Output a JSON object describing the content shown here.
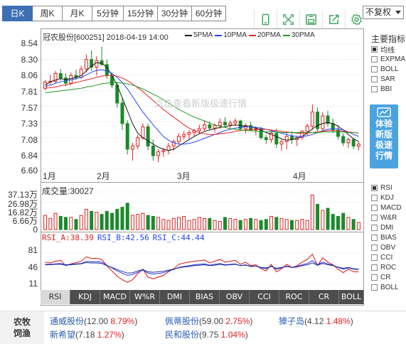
{
  "periods": [
    "日K",
    "周K",
    "月K",
    "5分钟",
    "15分钟",
    "30分钟",
    "60分钟"
  ],
  "active_period": "日K",
  "toolbar_icons": [
    "mobile-icon",
    "fullscreen-icon",
    "save-icon",
    "share-icon",
    "settings-icon"
  ],
  "adjust": {
    "selected": "不复权"
  },
  "stock": {
    "title": "冠农股份[600251] 2018-04-19 14:00"
  },
  "ma_legend": [
    {
      "label": "5PMA",
      "color": "#1a1a1a"
    },
    {
      "label": "10PMA",
      "color": "#2244ff"
    },
    {
      "label": "20PMA",
      "color": "#ee2222"
    },
    {
      "label": "30PMA",
      "color": "#229922"
    }
  ],
  "y_axis": [
    "8.54",
    "8.30",
    "8.06",
    "7.81",
    "7.57",
    "7.33",
    "7.08",
    "6.84",
    "6.60"
  ],
  "x_axis": [
    "1月",
    "2月",
    "3月",
    "4月"
  ],
  "volume": {
    "label": "成交量:30027",
    "y_axis": [
      "37.13万",
      "26.98万",
      "16.82万",
      "6.66万",
      "0"
    ]
  },
  "rsi": {
    "a": "RSI_A:38.39",
    "b": "RSI_B:42.56",
    "c": "RSI_C:44.44",
    "y_axis": [
      "81",
      "46",
      "11"
    ]
  },
  "watermark": "点击查看新版极速行情",
  "right_panel": {
    "title": "主要指标",
    "main": [
      {
        "label": "均线",
        "checked": true
      },
      {
        "label": "EXPMA",
        "checked": false
      },
      {
        "label": "BOLL",
        "checked": false
      },
      {
        "label": "SAR",
        "checked": false
      },
      {
        "label": "BBI",
        "checked": false
      }
    ],
    "promo_lines": [
      "体验",
      "新版",
      "极速",
      "行情"
    ],
    "sub": [
      {
        "label": "RSI",
        "checked": true
      },
      {
        "label": "KDJ",
        "checked": false
      },
      {
        "label": "MACD",
        "checked": false
      },
      {
        "label": "W&R",
        "checked": false
      },
      {
        "label": "DMI",
        "checked": false
      },
      {
        "label": "BIAS",
        "checked": false
      },
      {
        "label": "OBV",
        "checked": false
      },
      {
        "label": "CCI",
        "checked": false
      },
      {
        "label": "ROC",
        "checked": false
      },
      {
        "label": "CR",
        "checked": false
      },
      {
        "label": "BOLL",
        "checked": false
      }
    ]
  },
  "indicator_tabs": [
    "RSI",
    "KDJ",
    "MACD",
    "W%R",
    "DMI",
    "BIAS",
    "OBV",
    "CCI",
    "ROC",
    "CR",
    "BOLL"
  ],
  "active_indicator": "RSI",
  "related": {
    "category": "农牧饲渔",
    "stocks": [
      {
        "name": "通威股份",
        "price": "12.00",
        "change": "8.79%"
      },
      {
        "name": "佩蒂股份",
        "price": "59.00",
        "change": "2.75%"
      },
      {
        "name": "獐子岛",
        "price": "4.12",
        "change": "1.48%"
      },
      {
        "name": "新希望",
        "price": "7.18",
        "change": "1.27%"
      },
      {
        "name": "民和股份",
        "price": "9.75",
        "change": "1.04%"
      }
    ]
  },
  "colors": {
    "up": "#e02020",
    "down": "#1a8a2a",
    "accent": "#3d6fb3",
    "promo": "#4aa3e0"
  },
  "chart_data": [
    {
      "type": "candlestick",
      "title": "冠农股份[600251] 2018-04-19 14:00",
      "x_labels": [
        "1月",
        "2月",
        "3月",
        "4月"
      ],
      "ylim": [
        6.6,
        8.54
      ],
      "series": [
        {
          "name": "K线",
          "ohlc": [
            [
              7.85,
              7.98,
              7.82,
              7.95
            ],
            [
              7.95,
              8.06,
              7.9,
              7.96
            ],
            [
              7.96,
              8.12,
              7.93,
              8.08
            ],
            [
              8.08,
              8.15,
              7.97,
              8.01
            ],
            [
              8.01,
              8.08,
              7.88,
              7.93
            ],
            [
              7.93,
              8.1,
              7.9,
              8.05
            ],
            [
              8.05,
              8.14,
              7.98,
              8.02
            ],
            [
              8.02,
              8.2,
              8.0,
              8.15
            ],
            [
              8.15,
              8.38,
              8.1,
              8.3
            ],
            [
              8.3,
              8.44,
              8.12,
              8.18
            ],
            [
              8.18,
              8.35,
              8.05,
              8.28
            ],
            [
              8.28,
              8.5,
              8.2,
              8.22
            ],
            [
              8.22,
              8.3,
              8.0,
              8.05
            ],
            [
              8.05,
              8.1,
              7.85,
              7.9
            ],
            [
              7.9,
              7.95,
              7.55,
              7.62
            ],
            [
              7.62,
              7.7,
              7.2,
              7.3
            ],
            [
              7.3,
              7.35,
              6.82,
              6.9
            ],
            [
              6.9,
              7.0,
              6.72,
              6.95
            ],
            [
              6.95,
              7.12,
              6.9,
              7.08
            ],
            [
              7.08,
              7.3,
              7.05,
              7.25
            ],
            [
              7.25,
              7.3,
              6.88,
              6.95
            ],
            [
              6.95,
              7.05,
              6.72,
              6.8
            ],
            [
              6.8,
              6.9,
              6.7,
              6.86
            ],
            [
              6.86,
              6.92,
              6.78,
              6.88
            ],
            [
              6.88,
              7.0,
              6.82,
              6.95
            ],
            [
              6.95,
              7.05,
              6.88,
              7.02
            ],
            [
              7.02,
              7.15,
              6.98,
              7.1
            ],
            [
              7.1,
              7.18,
              7.05,
              7.13
            ],
            [
              7.13,
              7.2,
              7.06,
              7.16
            ],
            [
              7.16,
              7.22,
              7.1,
              7.19
            ],
            [
              7.19,
              7.28,
              7.14,
              7.22
            ],
            [
              7.22,
              7.35,
              7.18,
              7.28
            ],
            [
              7.28,
              7.33,
              7.2,
              7.23
            ],
            [
              7.23,
              7.3,
              7.16,
              7.27
            ],
            [
              7.27,
              7.38,
              7.22,
              7.32
            ],
            [
              7.32,
              7.4,
              7.25,
              7.28
            ],
            [
              7.28,
              7.35,
              7.22,
              7.31
            ],
            [
              7.31,
              7.38,
              7.26,
              7.34
            ],
            [
              7.34,
              7.36,
              7.2,
              7.22
            ],
            [
              7.22,
              7.3,
              7.15,
              7.27
            ],
            [
              7.27,
              7.33,
              7.18,
              7.2
            ],
            [
              7.2,
              7.26,
              7.12,
              7.22
            ],
            [
              7.22,
              7.25,
              7.05,
              7.08
            ],
            [
              7.08,
              7.12,
              6.98,
              7.05
            ],
            [
              7.05,
              7.2,
              7.0,
              7.15
            ],
            [
              7.15,
              7.22,
              6.92,
              6.98
            ],
            [
              6.98,
              7.05,
              6.88,
              7.02
            ],
            [
              7.02,
              7.15,
              6.9,
              7.1
            ],
            [
              7.1,
              7.18,
              6.98,
              7.05
            ],
            [
              7.05,
              7.1,
              6.95,
              7.08
            ],
            [
              7.08,
              7.2,
              7.05,
              7.18
            ],
            [
              7.18,
              7.3,
              7.12,
              7.26
            ],
            [
              7.26,
              7.6,
              7.2,
              7.48
            ],
            [
              7.48,
              7.55,
              7.15,
              7.22
            ],
            [
              7.22,
              7.48,
              7.2,
              7.42
            ],
            [
              7.42,
              7.5,
              7.25,
              7.3
            ],
            [
              7.3,
              7.38,
              7.15,
              7.2
            ],
            [
              7.2,
              7.28,
              7.05,
              7.1
            ],
            [
              7.1,
              7.15,
              6.95,
              7.0
            ],
            [
              7.0,
              7.08,
              6.92,
              7.05
            ],
            [
              7.05,
              7.08,
              6.9,
              6.95
            ],
            [
              6.95,
              7.02,
              6.88,
              6.98
            ]
          ]
        },
        {
          "name": "5PMA",
          "values": [
            7.9,
            7.95,
            7.98,
            8.0,
            7.99,
            8.0,
            8.02,
            8.05,
            8.12,
            8.2,
            8.25,
            8.24,
            8.18,
            8.05,
            7.9,
            7.7,
            7.5,
            7.3,
            7.15,
            7.08,
            7.03,
            6.98,
            6.93,
            6.9,
            6.88,
            6.9,
            6.95,
            7.0,
            7.05,
            7.1,
            7.14,
            7.18,
            7.2,
            7.22,
            7.24,
            7.25,
            7.27,
            7.28,
            7.27,
            7.26,
            7.25,
            7.23,
            7.2,
            7.16,
            7.13,
            7.1,
            7.06,
            7.04,
            7.05,
            7.07,
            7.1,
            7.15,
            7.22,
            7.27,
            7.3,
            7.32,
            7.3,
            7.26,
            7.2,
            7.13,
            7.06,
            7.02
          ]
        },
        {
          "name": "10PMA",
          "values": [
            7.88,
            7.9,
            7.93,
            7.95,
            7.97,
            7.98,
            8.0,
            8.02,
            8.06,
            8.1,
            8.13,
            8.14,
            8.12,
            8.08,
            8.02,
            7.94,
            7.84,
            7.72,
            7.6,
            7.48,
            7.38,
            7.28,
            7.19,
            7.1,
            7.04,
            7.0,
            6.98,
            6.98,
            6.99,
            7.01,
            7.04,
            7.07,
            7.1,
            7.13,
            7.16,
            7.19,
            7.21,
            7.23,
            7.24,
            7.25,
            7.25,
            7.24,
            7.23,
            7.21,
            7.19,
            7.17,
            7.15,
            7.13,
            7.11,
            7.1,
            7.1,
            7.11,
            7.13,
            7.16,
            7.19,
            7.21,
            7.22,
            7.22,
            7.2,
            7.17,
            7.13,
            7.1
          ]
        },
        {
          "name": "20PMA",
          "values": [
            7.85,
            7.86,
            7.87,
            7.89,
            7.9,
            7.92,
            7.94,
            7.96,
            7.98,
            8.0,
            8.02,
            8.04,
            8.05,
            8.05,
            8.04,
            8.01,
            7.97,
            7.92,
            7.86,
            7.8,
            7.73,
            7.66,
            7.59,
            7.52,
            7.46,
            7.4,
            7.34,
            7.28,
            7.23,
            7.19,
            7.16,
            7.14,
            7.13,
            7.13,
            7.14,
            7.15,
            7.16,
            7.18,
            7.19,
            7.2,
            7.21,
            7.21,
            7.21,
            7.21,
            7.2,
            7.19,
            7.18,
            7.17,
            7.16,
            7.15,
            7.15,
            7.15,
            7.16,
            7.17,
            7.18,
            7.19,
            7.19,
            7.19,
            7.18,
            7.17,
            7.16,
            7.15
          ]
        },
        {
          "name": "30PMA",
          "values": [
            7.78,
            7.79,
            7.8,
            7.81,
            7.82,
            7.83,
            7.84,
            7.85,
            7.87,
            7.88,
            7.9,
            7.92,
            7.93,
            7.94,
            7.94,
            7.93,
            7.92,
            7.9,
            7.87,
            7.84,
            7.8,
            7.76,
            7.72,
            7.67,
            7.62,
            7.57,
            7.52,
            7.48,
            7.44,
            7.4,
            7.37,
            7.34,
            7.31,
            7.28,
            7.26,
            7.24,
            7.22,
            7.21,
            7.2,
            7.19,
            7.19,
            7.18,
            7.18,
            7.17,
            7.17,
            7.17,
            7.16,
            7.16,
            7.16,
            7.16,
            7.16,
            7.16,
            7.16,
            7.16,
            7.17,
            7.17,
            7.17,
            7.17,
            7.17,
            7.16,
            7.16,
            7.15
          ]
        }
      ]
    },
    {
      "type": "bar",
      "title": "成交量:30027",
      "ylim": [
        0,
        37.13
      ],
      "ylabel": "万",
      "values": [
        14,
        11,
        16,
        13,
        12,
        12,
        10,
        14,
        20,
        18,
        17,
        15,
        18,
        16,
        20,
        22,
        26,
        14,
        15,
        16,
        14,
        13,
        12,
        10,
        9,
        11,
        12,
        13,
        9,
        10,
        12,
        11,
        11,
        9,
        8,
        12,
        11,
        10,
        9,
        10,
        11,
        10,
        9,
        10,
        13,
        12,
        11,
        10,
        9,
        9,
        10,
        9,
        34,
        25,
        19,
        21,
        15,
        13,
        16,
        12,
        10,
        7
      ]
    },
    {
      "type": "line",
      "title": "RSI",
      "ylim": [
        0,
        100
      ],
      "series": [
        {
          "name": "RSI_A",
          "values": [
            60,
            58,
            62,
            64,
            52,
            56,
            59,
            62,
            72,
            68,
            69,
            66,
            52,
            40,
            28,
            20,
            14,
            20,
            34,
            44,
            26,
            22,
            26,
            30,
            38,
            45,
            55,
            58,
            60,
            62,
            63,
            65,
            58,
            62,
            66,
            60,
            62,
            64,
            55,
            60,
            52,
            54,
            45,
            40,
            55,
            38,
            45,
            55,
            48,
            52,
            60,
            66,
            78,
            52,
            70,
            60,
            54,
            44,
            36,
            44,
            38,
            38
          ]
        },
        {
          "name": "RSI_B",
          "values": [
            55,
            55,
            56,
            57,
            54,
            55,
            56,
            57,
            62,
            61,
            61,
            60,
            53,
            47,
            40,
            35,
            30,
            32,
            37,
            42,
            35,
            33,
            34,
            36,
            40,
            43,
            48,
            50,
            52,
            54,
            55,
            56,
            53,
            55,
            57,
            54,
            55,
            56,
            52,
            54,
            50,
            51,
            47,
            45,
            51,
            44,
            47,
            51,
            48,
            50,
            54,
            57,
            63,
            54,
            60,
            56,
            53,
            48,
            44,
            47,
            44,
            43
          ]
        },
        {
          "name": "RSI_C",
          "values": [
            54,
            54,
            55,
            55,
            53,
            54,
            55,
            56,
            59,
            58,
            58,
            57,
            52,
            48,
            43,
            39,
            35,
            36,
            40,
            43,
            38,
            37,
            38,
            39,
            42,
            44,
            47,
            49,
            50,
            52,
            53,
            54,
            52,
            53,
            55,
            53,
            54,
            55,
            52,
            53,
            51,
            51,
            48,
            47,
            50,
            46,
            48,
            50,
            48,
            49,
            52,
            54,
            58,
            53,
            57,
            54,
            52,
            49,
            46,
            48,
            45,
            44
          ]
        }
      ]
    }
  ]
}
